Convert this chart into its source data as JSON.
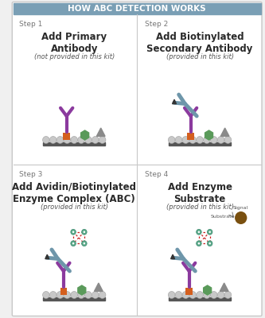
{
  "title": "HOW ABC DETECTION WORKS",
  "title_bg": "#7a9fb5",
  "title_color": "#ffffff",
  "border_color": "#c8c8c8",
  "bg_color": "#f0f0f0",
  "cell_bg": "#f8f8f8",
  "step_color": "#777777",
  "step_label_size": 6.5,
  "main_text_size": 8.5,
  "sub_text_size": 6.0,
  "steps": [
    {
      "label": "Step 1",
      "title": "Add Primary\nAntibody",
      "subtitle": "(not provided in this kit)"
    },
    {
      "label": "Step 2",
      "title": "Add Biotinylated\nSecondary Antibody",
      "subtitle": "(provided in this kit)"
    },
    {
      "label": "Step 3",
      "title": "Add Avidin/Biotinylated\nEnzyme Complex (ABC)",
      "subtitle": "(provided in this kit)"
    },
    {
      "label": "Step 4",
      "title": "Add Enzyme\nSubstrate",
      "subtitle": "(provided in this kit)"
    }
  ],
  "purple": "#8b3a9e",
  "blue_gray": "#6e96aa",
  "orange": "#d45f1e",
  "green": "#5a9a5a",
  "gray_tri": "#8a8a8a",
  "teal_node": "#5aaa8a",
  "red_line": "#cc2222",
  "brown_signal": "#7a5010",
  "surface_circle": "#c8c8c8",
  "surface_bar": "#555555",
  "biotin_black": "#333333"
}
